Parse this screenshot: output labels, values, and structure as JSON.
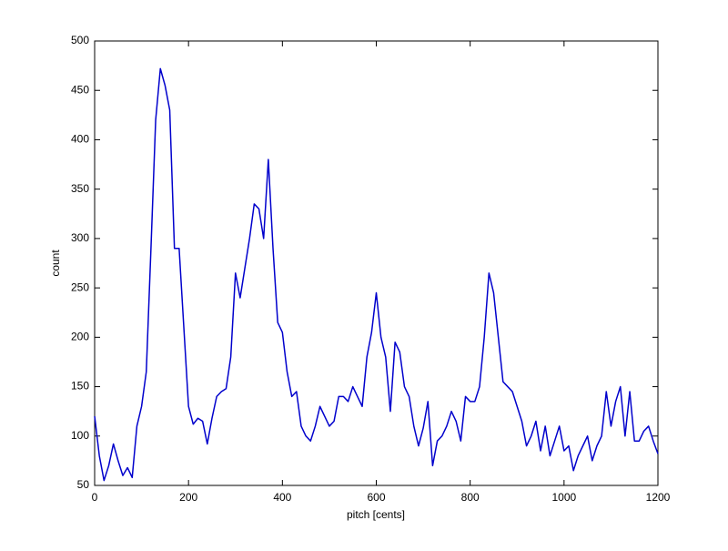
{
  "chart_data": {
    "type": "line",
    "xlabel": "pitch [cents]",
    "ylabel": "count",
    "x": [
      0,
      10,
      20,
      30,
      40,
      50,
      60,
      70,
      80,
      90,
      100,
      110,
      120,
      130,
      140,
      150,
      160,
      170,
      180,
      190,
      200,
      210,
      220,
      230,
      240,
      250,
      260,
      270,
      280,
      290,
      300,
      310,
      320,
      330,
      340,
      350,
      360,
      370,
      380,
      390,
      400,
      410,
      420,
      430,
      440,
      450,
      460,
      470,
      480,
      490,
      500,
      510,
      520,
      530,
      540,
      550,
      560,
      570,
      580,
      590,
      600,
      610,
      620,
      630,
      640,
      650,
      660,
      670,
      680,
      690,
      700,
      710,
      720,
      730,
      740,
      750,
      760,
      770,
      780,
      790,
      800,
      810,
      820,
      830,
      840,
      850,
      860,
      870,
      880,
      890,
      900,
      910,
      920,
      930,
      940,
      950,
      960,
      970,
      980,
      990,
      1000,
      1010,
      1020,
      1030,
      1040,
      1050,
      1060,
      1070,
      1080,
      1090,
      1100,
      1110,
      1120,
      1130,
      1140,
      1150,
      1160,
      1170,
      1180,
      1190,
      1200
    ],
    "values": [
      120,
      80,
      55,
      70,
      92,
      75,
      60,
      68,
      58,
      110,
      130,
      165,
      290,
      420,
      472,
      455,
      430,
      290,
      290,
      210,
      130,
      112,
      118,
      115,
      92,
      118,
      140,
      145,
      148,
      180,
      265,
      240,
      270,
      300,
      335,
      330,
      300,
      380,
      290,
      215,
      205,
      165,
      140,
      145,
      110,
      100,
      95,
      110,
      130,
      120,
      110,
      115,
      140,
      140,
      135,
      150,
      140,
      130,
      180,
      205,
      245,
      200,
      180,
      125,
      195,
      185,
      150,
      140,
      110,
      90,
      108,
      135,
      70,
      95,
      100,
      110,
      125,
      115,
      95,
      140,
      135,
      135,
      150,
      200,
      265,
      245,
      200,
      155,
      150,
      145,
      130,
      115,
      90,
      100,
      115,
      85,
      110,
      80,
      95,
      110,
      85,
      90,
      65,
      80,
      90,
      100,
      75,
      90,
      100,
      145,
      110,
      135,
      150,
      100,
      145,
      95,
      95,
      105,
      110,
      95,
      82
    ],
    "color": "#0000cc",
    "xlim": [
      0,
      1200
    ],
    "xticks": [
      0,
      200,
      400,
      600,
      800,
      1000,
      1200
    ],
    "ylim": [
      50,
      500
    ],
    "yticks": [
      50,
      100,
      150,
      200,
      250,
      300,
      350,
      400,
      450,
      500
    ]
  }
}
